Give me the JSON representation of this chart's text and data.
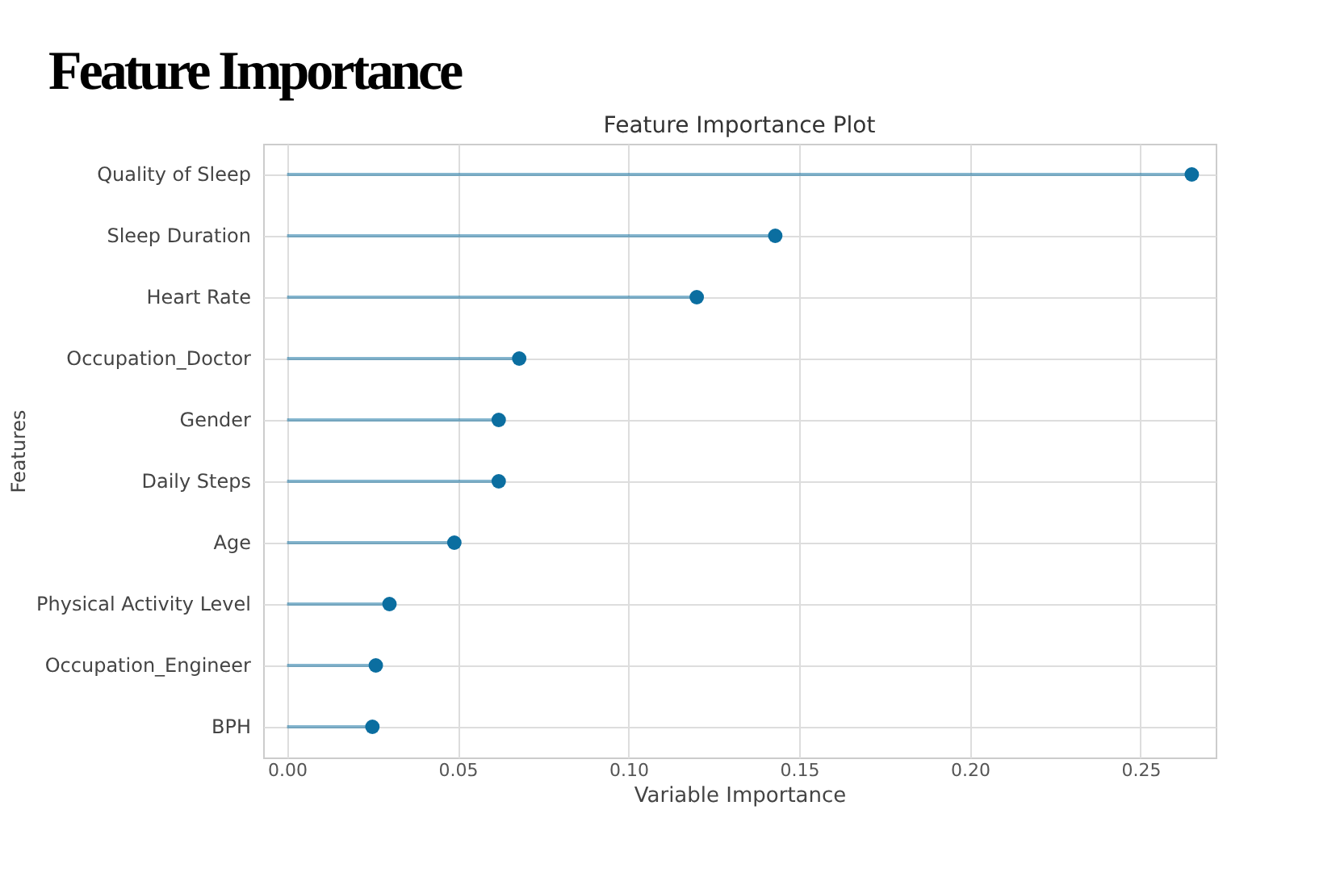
{
  "chart_data": {
    "type": "lollipop",
    "title": "Feature Importance",
    "subtitle": "Feature Importance Plot",
    "xlabel": "Variable Importance",
    "ylabel": "Features",
    "orientation": "horizontal",
    "categories": [
      "Quality of Sleep",
      "Sleep Duration",
      "Heart Rate",
      "Occupation_Doctor",
      "Gender",
      "Daily Steps",
      "Age",
      "Physical Activity Level",
      "Occupation_Engineer",
      "BPH"
    ],
    "series": [
      {
        "color": "#0b6ea0",
        "values": [
          0.265,
          0.143,
          0.12,
          0.068,
          0.062,
          0.062,
          0.049,
          0.03,
          0.026,
          0.025
        ]
      }
    ],
    "xlim": [
      -0.007,
      0.272
    ],
    "xticks": [
      {
        "value": 0,
        "label": "0.00"
      },
      {
        "value": 0.05,
        "label": "0.05"
      },
      {
        "value": 0.1,
        "label": "0.10"
      },
      {
        "value": 0.15,
        "label": "0.15"
      },
      {
        "value": 0.2,
        "label": "0.20"
      },
      {
        "value": 0.25,
        "label": "0.25"
      }
    ],
    "grid": true,
    "marker": "circle"
  }
}
